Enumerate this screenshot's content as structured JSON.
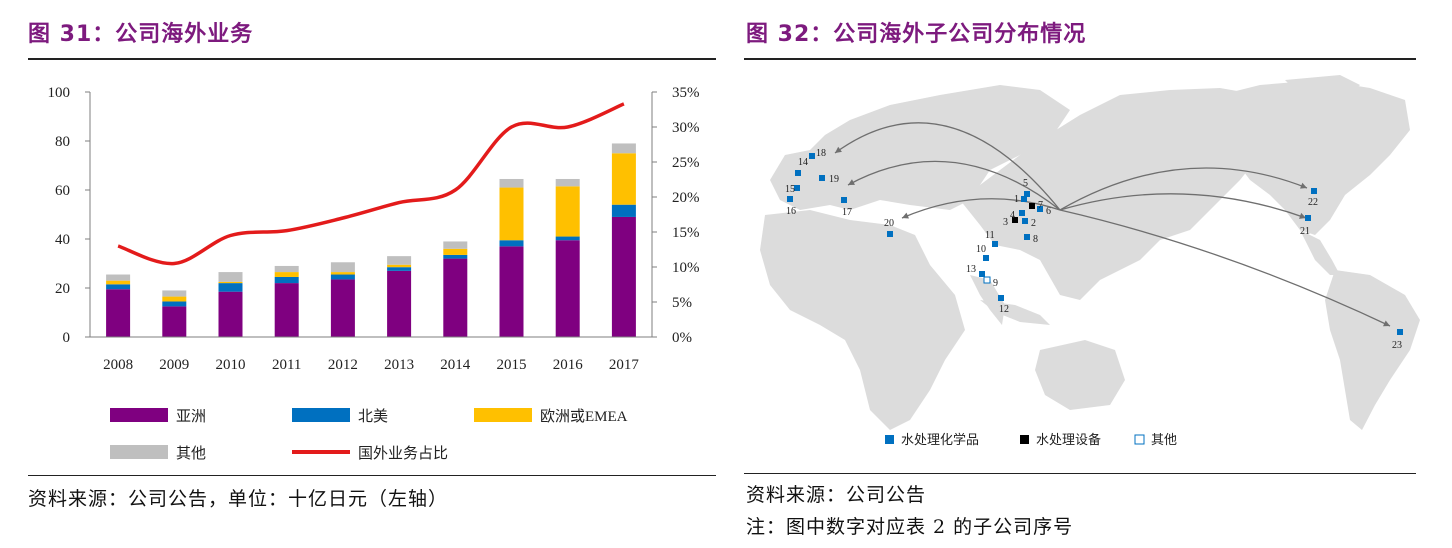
{
  "left_panel": {
    "title": "图 31：公司海外业务",
    "source": "资料来源：公司公告，单位：十亿日元（左轴）"
  },
  "right_panel": {
    "title": "图 32：公司海外子公司分布情况",
    "source": "资料来源：公司公告",
    "note": "注：图中数字对应表 2 的子公司序号"
  },
  "colors": {
    "title": "#7d1a7e",
    "asia": "#7f0080",
    "north_america": "#0070c0",
    "europe": "#ffc000",
    "other": "#bfbfbf",
    "ratio_line": "#e31b1b",
    "land": "#dcdcdc",
    "chem": "#0070c0",
    "equip": "#000000"
  },
  "chart_data": [
    {
      "type": "bar",
      "stacked": true,
      "categories": [
        "2008",
        "2009",
        "2010",
        "2011",
        "2012",
        "2013",
        "2014",
        "2015",
        "2016",
        "2017"
      ],
      "series": [
        {
          "name": "亚洲",
          "key": "asia",
          "values": [
            19.5,
            12.5,
            18.5,
            22,
            23.5,
            27,
            32,
            37,
            39.5,
            49
          ]
        },
        {
          "name": "北美",
          "key": "north_america",
          "values": [
            2,
            2,
            3.5,
            2.5,
            2,
            1.5,
            1.5,
            2.5,
            1.5,
            5
          ]
        },
        {
          "name": "欧洲或EMEA",
          "key": "europe",
          "values": [
            1.5,
            2,
            0.5,
            2,
            1,
            1,
            2.5,
            21.5,
            20.5,
            21
          ]
        },
        {
          "name": "其他",
          "key": "other",
          "values": [
            2.5,
            2.5,
            4,
            2.5,
            4,
            3.5,
            3,
            3.5,
            3,
            4
          ]
        }
      ],
      "line_series": {
        "name": "国外业务占比",
        "key": "ratio_line",
        "values": [
          13,
          10.5,
          14.5,
          15.2,
          17,
          19.2,
          21,
          30,
          30,
          33.3
        ]
      },
      "ylim": [
        0,
        100
      ],
      "yticks": [
        "0",
        "20",
        "40",
        "60",
        "80",
        "100"
      ],
      "ylim_right": [
        0,
        35
      ],
      "yticks_right": [
        "0%",
        "5%",
        "10%",
        "15%",
        "20%",
        "25%",
        "30%",
        "35%"
      ],
      "legend": [
        {
          "label": "亚洲",
          "key": "asia",
          "kind": "bar"
        },
        {
          "label": "北美",
          "key": "north_america",
          "kind": "bar"
        },
        {
          "label": "欧洲或EMEA",
          "key": "europe",
          "kind": "bar"
        },
        {
          "label": "其他",
          "key": "other",
          "kind": "bar"
        },
        {
          "label": "国外业务占比",
          "key": "ratio_line",
          "kind": "line"
        }
      ]
    },
    {
      "type": "map",
      "markers": [
        {
          "id": "1",
          "kind": "chem"
        },
        {
          "id": "2",
          "kind": "chem"
        },
        {
          "id": "3",
          "kind": "equip"
        },
        {
          "id": "4",
          "kind": "chem"
        },
        {
          "id": "5",
          "kind": "chem"
        },
        {
          "id": "6",
          "kind": "chem"
        },
        {
          "id": "7",
          "kind": "equip"
        },
        {
          "id": "8",
          "kind": "chem"
        },
        {
          "id": "9",
          "kind": "other"
        },
        {
          "id": "10",
          "kind": "chem"
        },
        {
          "id": "11",
          "kind": "chem"
        },
        {
          "id": "12",
          "kind": "chem"
        },
        {
          "id": "13",
          "kind": "chem"
        },
        {
          "id": "14",
          "kind": "chem"
        },
        {
          "id": "15",
          "kind": "chem"
        },
        {
          "id": "16",
          "kind": "chem"
        },
        {
          "id": "17",
          "kind": "chem"
        },
        {
          "id": "18",
          "kind": "chem"
        },
        {
          "id": "19",
          "kind": "chem"
        },
        {
          "id": "20",
          "kind": "chem"
        },
        {
          "id": "21",
          "kind": "chem"
        },
        {
          "id": "22",
          "kind": "chem"
        },
        {
          "id": "23",
          "kind": "chem"
        }
      ],
      "legend": [
        {
          "label": "水处理化学品",
          "kind": "chem"
        },
        {
          "label": "水处理设备",
          "kind": "equip"
        },
        {
          "label": "其他",
          "kind": "other"
        }
      ]
    }
  ]
}
